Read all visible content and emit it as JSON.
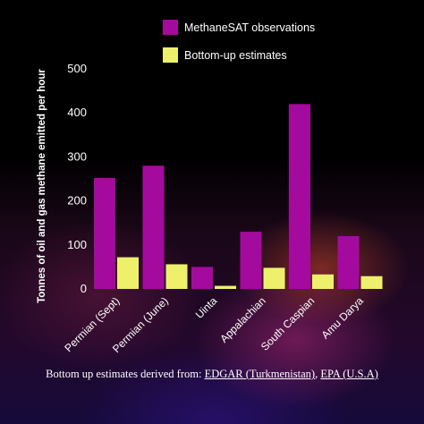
{
  "chart_data": {
    "type": "bar",
    "categories": [
      "Permian (Sept)",
      "Permian (June)",
      "Uinta",
      "Appalachian",
      "South Caspian",
      "Amu Darya"
    ],
    "series": [
      {
        "name": "MethaneSAT observations",
        "color": "#a50a9e",
        "values": [
          252,
          280,
          50,
          130,
          420,
          120
        ]
      },
      {
        "name": "Bottom-up estimates",
        "color": "#eef06c",
        "values": [
          72,
          56,
          7,
          48,
          33,
          29
        ]
      }
    ],
    "ylabel": "Tonnes of oil and gas methane emitted per hour",
    "xlabel": "",
    "ylim": [
      0,
      500
    ],
    "yticks": [
      0,
      100,
      200,
      300,
      400,
      500
    ],
    "legend_position": "top-right",
    "grid": false
  },
  "footnote": {
    "prefix": "Bottom up estimates derived from: ",
    "link1": "EDGAR (Turkmenistan)",
    "separator": ", ",
    "link2": "EPA (U.S.A)"
  }
}
